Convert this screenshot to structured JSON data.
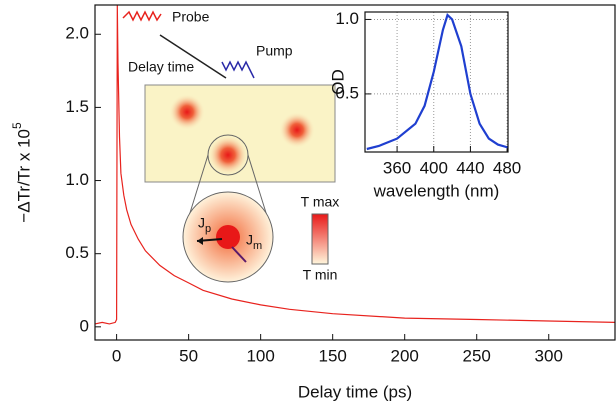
{
  "chart_data": [
    {
      "type": "line",
      "xlabel": "Delay time (ps)",
      "ylabel": "−ΔTr/Tr x 10",
      "ylabel_exponent": "5",
      "color": "#e8231e",
      "x": [
        -15,
        -10,
        -5,
        -1,
        0,
        0.5,
        1,
        2,
        3,
        5,
        7,
        10,
        15,
        20,
        30,
        40,
        50,
        60,
        80,
        100,
        120,
        150,
        200,
        250,
        300,
        346
      ],
      "values": [
        0.02,
        0.03,
        0.02,
        0.03,
        0.05,
        2.2,
        1.8,
        1.3,
        1.05,
        0.9,
        0.8,
        0.7,
        0.6,
        0.52,
        0.42,
        0.35,
        0.3,
        0.25,
        0.19,
        0.15,
        0.12,
        0.09,
        0.06,
        0.05,
        0.04,
        0.03
      ],
      "xlim": [
        -15,
        346
      ],
      "ylim": [
        -0.09,
        2.2
      ],
      "xticks": [
        0,
        50,
        100,
        150,
        200,
        250,
        300
      ],
      "yticks": [
        0,
        0.5,
        {
          "value": 1,
          "label": "1.0"
        },
        1.5,
        {
          "value": 2,
          "label": "2.0"
        }
      ],
      "annotations": {
        "probe": "Probe",
        "pump": "Pump",
        "delay": "Delay time",
        "jp": {
          "text": "J",
          "sub": "p"
        },
        "jm": {
          "text": "J",
          "sub": "m"
        },
        "tmax": "T max",
        "tmin": "T min"
      }
    },
    {
      "type": "line",
      "xlabel": "wavelength (nm)",
      "ylabel": "OD",
      "color": "#1f3fd0",
      "grid": true,
      "x": [
        327,
        340,
        360,
        380,
        390,
        400,
        410,
        415,
        420,
        430,
        440,
        450,
        460,
        470,
        481
      ],
      "values": [
        0.13,
        0.15,
        0.2,
        0.3,
        0.42,
        0.65,
        0.93,
        1.03,
        1.0,
        0.82,
        0.5,
        0.3,
        0.2,
        0.16,
        0.14
      ],
      "xlim": [
        325,
        481
      ],
      "ylim": [
        0.11,
        1.05
      ],
      "xticks": [
        360,
        400,
        440,
        480
      ],
      "yticks": [
        0.5,
        {
          "value": 1,
          "label": "1.0"
        }
      ]
    }
  ]
}
